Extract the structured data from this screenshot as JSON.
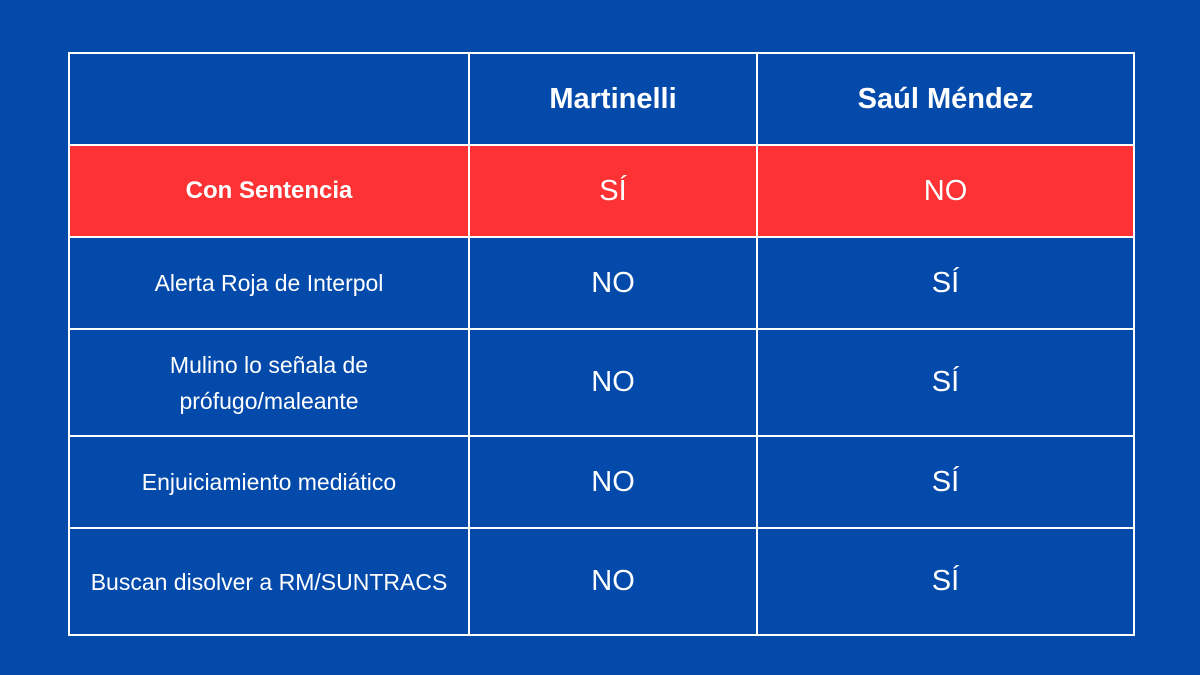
{
  "colors": {
    "background": "#034aab",
    "highlight_row": "#fc3234",
    "border": "#ffffff",
    "text": "#ffffff"
  },
  "table": {
    "columns": [
      "",
      "Martinelli",
      "Saúl Méndez"
    ],
    "rows": [
      {
        "label": "Con Sentencia",
        "values": [
          "SÍ",
          "NO"
        ]
      },
      {
        "label": "Alerta Roja de Interpol",
        "values": [
          "NO",
          "SÍ"
        ]
      },
      {
        "label": "Mulino lo señala de prófugo/maleante",
        "values": [
          "NO",
          "SÍ"
        ]
      },
      {
        "label": "Enjuiciamiento mediático",
        "values": [
          "NO",
          "SÍ"
        ]
      },
      {
        "label": "Buscan disolver a RM/SUNTRACS",
        "values": [
          "NO",
          "SÍ"
        ]
      }
    ]
  }
}
